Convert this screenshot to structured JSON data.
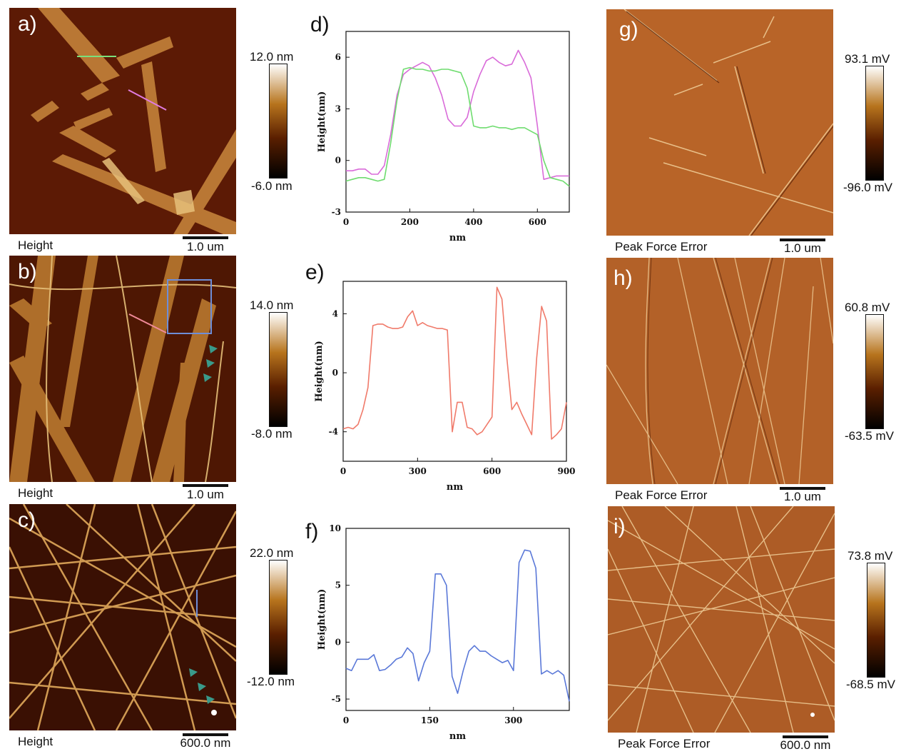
{
  "panels": {
    "a": {
      "label": "a)",
      "caption": "Height",
      "scale": "1.0 um",
      "cb_max": "12.0 nm",
      "cb_min": "-6.0 nm"
    },
    "b": {
      "label": "b)",
      "caption": "Height",
      "scale": "1.0 um",
      "cb_max": "14.0 nm",
      "cb_min": "-8.0 nm"
    },
    "c": {
      "label": "c)",
      "caption": "Height",
      "scale": "600.0 nm",
      "cb_max": "22.0 nm",
      "cb_min": "-12.0 nm"
    },
    "d": {
      "label": "d)"
    },
    "e": {
      "label": "e)"
    },
    "f": {
      "label": "f)"
    },
    "g": {
      "label": "g)",
      "caption": "Peak Force Error",
      "scale": "1.0 um",
      "cb_max": "93.1 mV",
      "cb_min": "-96.0 mV"
    },
    "h": {
      "label": "h)",
      "caption": "Peak Force Error",
      "scale": "1.0 um",
      "cb_max": "60.8 mV",
      "cb_min": "-63.5 mV"
    },
    "i": {
      "label": "i)",
      "caption": "Peak Force Error",
      "scale": "600.0 nm",
      "cb_max": "73.8 mV",
      "cb_min": "-68.5 mV"
    }
  },
  "colors": {
    "height_map_dark": "#1a0500",
    "height_map_mid": "#8a3a0a",
    "height_map_light": "#f3dca0",
    "error_map": "#b4622a",
    "green": "#6fdc6f",
    "magenta": "#d96bd9",
    "salmon": "#f07a6a",
    "blue": "#5a78d8"
  },
  "chart_data": [
    {
      "type": "line",
      "panel": "d",
      "xlabel": "nm",
      "ylabel": "Height(nm)",
      "xlim": [
        0,
        700
      ],
      "ylim": [
        -3,
        7.5
      ],
      "xticks": [
        "0",
        "200",
        "400",
        "600"
      ],
      "xtick_values": [
        0,
        200,
        400,
        600
      ],
      "yticks": [
        "-3",
        "0",
        "3",
        "6"
      ],
      "ytick_values": [
        -3,
        0,
        3,
        6
      ],
      "series": [
        {
          "color": "#d96bd9",
          "x": [
            0,
            20,
            40,
            60,
            80,
            100,
            120,
            140,
            160,
            180,
            200,
            220,
            240,
            260,
            280,
            300,
            320,
            340,
            360,
            380,
            400,
            420,
            440,
            460,
            480,
            500,
            520,
            540,
            560,
            580,
            600,
            620,
            640,
            660,
            680,
            700
          ],
          "y": [
            -0.6,
            -0.6,
            -0.5,
            -0.5,
            -0.8,
            -0.8,
            -0.3,
            1.5,
            3.8,
            5.0,
            5.3,
            5.5,
            5.7,
            5.5,
            4.8,
            3.8,
            2.4,
            2.0,
            2.0,
            2.5,
            4.0,
            5.0,
            5.8,
            6.0,
            5.7,
            5.5,
            5.6,
            6.4,
            5.7,
            4.8,
            2.0,
            -1.1,
            -1.0,
            -0.9,
            -0.9,
            -0.9
          ]
        },
        {
          "color": "#6fdc6f",
          "x": [
            0,
            20,
            40,
            60,
            80,
            100,
            120,
            140,
            160,
            180,
            200,
            220,
            240,
            260,
            280,
            300,
            320,
            340,
            360,
            380,
            400,
            420,
            440,
            460,
            480,
            500,
            520,
            540,
            560,
            580,
            600,
            620,
            640,
            660,
            680,
            700
          ],
          "y": [
            -1.2,
            -1.1,
            -1.0,
            -1.0,
            -1.1,
            -1.2,
            -1.1,
            1.0,
            3.5,
            5.3,
            5.4,
            5.3,
            5.3,
            5.2,
            5.2,
            5.3,
            5.3,
            5.2,
            5.1,
            4.2,
            2.0,
            1.9,
            1.9,
            2.0,
            1.9,
            1.9,
            1.8,
            1.9,
            1.9,
            1.7,
            1.5,
            0.0,
            -1.0,
            -1.1,
            -1.2,
            -1.5
          ]
        }
      ]
    },
    {
      "type": "line",
      "panel": "e",
      "xlabel": "nm",
      "ylabel": "Height(nm)",
      "xlim": [
        0,
        900
      ],
      "ylim": [
        -6,
        6.2
      ],
      "xticks": [
        "0",
        "300",
        "600",
        "900"
      ],
      "xtick_values": [
        0,
        300,
        600,
        900
      ],
      "yticks": [
        "-4",
        "0",
        "4"
      ],
      "ytick_values": [
        -4,
        0,
        4
      ],
      "series": [
        {
          "color": "#f07a6a",
          "x": [
            0,
            20,
            40,
            60,
            80,
            100,
            120,
            140,
            160,
            180,
            200,
            220,
            240,
            260,
            280,
            300,
            320,
            340,
            360,
            380,
            400,
            420,
            440,
            460,
            480,
            500,
            520,
            540,
            560,
            580,
            600,
            620,
            640,
            660,
            680,
            700,
            720,
            740,
            760,
            780,
            800,
            820,
            840,
            860,
            880,
            900
          ],
          "y": [
            -3.8,
            -3.7,
            -3.8,
            -3.5,
            -2.5,
            -1.0,
            3.2,
            3.3,
            3.3,
            3.1,
            3.0,
            3.0,
            3.1,
            3.8,
            4.2,
            3.2,
            3.4,
            3.2,
            3.1,
            3.0,
            3.0,
            2.9,
            -4.0,
            -2.0,
            -2.0,
            -3.7,
            -3.8,
            -4.2,
            -4.0,
            -3.5,
            -3.0,
            5.8,
            5.0,
            1.0,
            -2.5,
            -2.0,
            -2.8,
            -3.5,
            -4.2,
            1.0,
            4.5,
            3.5,
            -4.5,
            -4.2,
            -3.8,
            -2.0
          ]
        }
      ]
    },
    {
      "type": "line",
      "panel": "f",
      "xlabel": "nm",
      "ylabel": "Height(nm)",
      "xlim": [
        0,
        400
      ],
      "ylim": [
        -6,
        10
      ],
      "xticks": [
        "0",
        "150",
        "300"
      ],
      "xtick_values": [
        0,
        150,
        300
      ],
      "yticks": [
        "-5",
        "0",
        "5",
        "10"
      ],
      "ytick_values": [
        -5,
        0,
        5,
        10
      ],
      "series": [
        {
          "color": "#5a78d8",
          "x": [
            0,
            10,
            20,
            30,
            40,
            50,
            60,
            70,
            80,
            90,
            100,
            110,
            120,
            130,
            140,
            150,
            160,
            170,
            180,
            190,
            200,
            210,
            220,
            230,
            240,
            250,
            260,
            270,
            280,
            290,
            300,
            310,
            320,
            330,
            340,
            350,
            360,
            370,
            380,
            390,
            400
          ],
          "y": [
            -2.3,
            -2.5,
            -1.5,
            -1.5,
            -1.5,
            -1.1,
            -2.5,
            -2.4,
            -2.0,
            -1.5,
            -1.3,
            -0.5,
            -1.0,
            -3.4,
            -1.8,
            -0.8,
            6.0,
            6.0,
            5.0,
            -3.0,
            -4.5,
            -2.5,
            -0.8,
            -0.3,
            -0.8,
            -0.8,
            -1.2,
            -1.5,
            -1.8,
            -1.6,
            -2.5,
            7.0,
            8.1,
            8.0,
            6.5,
            -2.8,
            -2.5,
            -2.8,
            -2.5,
            -2.9,
            -5.2
          ]
        }
      ]
    }
  ]
}
